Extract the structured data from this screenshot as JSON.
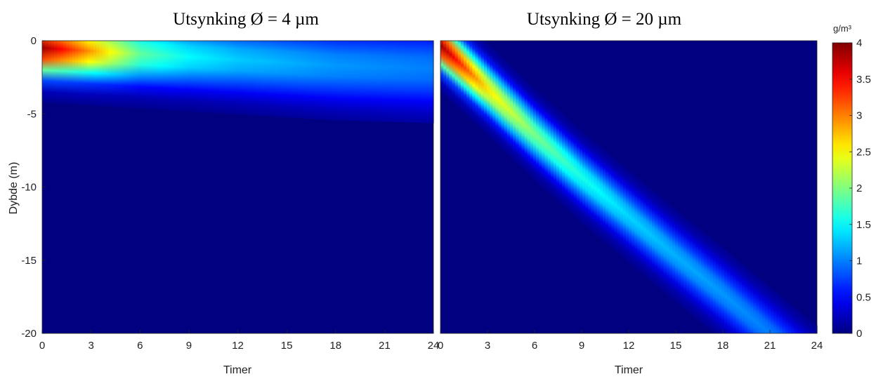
{
  "figure": {
    "colorbar": {
      "unit": "g/m³",
      "ticks": [
        "0",
        "0.5",
        "1",
        "1.5",
        "2",
        "2.5",
        "3",
        "3.5",
        "4"
      ],
      "range": [
        0,
        4
      ],
      "colormap": "jet"
    },
    "ylabel": "Dybde (m)"
  },
  "chart_data": [
    {
      "type": "heatmap",
      "title": "Utsynking Ø = 4 µm",
      "xlabel": "Timer",
      "ylabel": "Dybde (m)",
      "xlim": [
        0,
        24
      ],
      "ylim": [
        -20,
        0
      ],
      "xticks": [
        "0",
        "3",
        "6",
        "9",
        "12",
        "15",
        "18",
        "21",
        "24"
      ],
      "yticks": [
        "0",
        "-5",
        "-10",
        "-15",
        "-20"
      ],
      "clim": [
        0,
        4
      ],
      "plume": {
        "center_depth_at": [
          [
            0,
            -0.5
          ],
          [
            3,
            -0.7
          ],
          [
            6,
            -0.9
          ],
          [
            9,
            -1.1
          ],
          [
            12,
            -1.3
          ],
          [
            15,
            -1.5
          ],
          [
            18,
            -1.7
          ],
          [
            21,
            -1.8
          ],
          [
            24,
            -1.9
          ]
        ],
        "peak_value_at": [
          [
            0,
            3.9
          ],
          [
            3,
            2.9
          ],
          [
            6,
            1.9
          ],
          [
            9,
            1.5
          ],
          [
            12,
            1.3
          ],
          [
            15,
            1.2
          ],
          [
            18,
            1.1
          ],
          [
            21,
            1.05
          ],
          [
            24,
            1.0
          ]
        ]
      }
    },
    {
      "type": "heatmap",
      "title": "Utsynking Ø = 20 µm",
      "xlabel": "Timer",
      "ylabel": "",
      "xlim": [
        0,
        24
      ],
      "ylim": [
        -20,
        0
      ],
      "xticks": [
        "0",
        "3",
        "6",
        "9",
        "12",
        "15",
        "18",
        "21",
        "24"
      ],
      "yticks": [],
      "clim": [
        0,
        4
      ],
      "plume": {
        "center_depth_at": [
          [
            0,
            -0.3
          ],
          [
            3,
            -3.3
          ],
          [
            6,
            -6.4
          ],
          [
            9,
            -9.3
          ],
          [
            12,
            -12.0
          ],
          [
            15,
            -14.7
          ],
          [
            18,
            -17.3
          ],
          [
            21,
            -20.0
          ]
        ],
        "peak_value_at": [
          [
            0,
            3.9
          ],
          [
            3,
            2.6
          ],
          [
            6,
            2.0
          ],
          [
            9,
            1.6
          ],
          [
            12,
            1.35
          ],
          [
            15,
            1.2
          ],
          [
            18,
            1.1
          ],
          [
            21,
            1.0
          ]
        ]
      }
    }
  ]
}
